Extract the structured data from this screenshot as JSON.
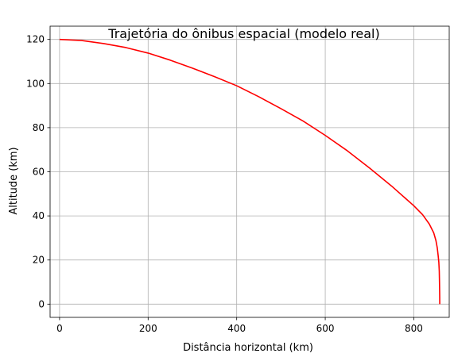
{
  "chart_data": {
    "type": "line",
    "title": "Trajetória do ônibus espacial (modelo real)",
    "xlabel": "Distância horizontal (km)",
    "ylabel": "Altitude (km)",
    "xlim": [
      -21.4,
      880
    ],
    "ylim": [
      -6,
      126
    ],
    "xticks": [
      0,
      200,
      400,
      600,
      800
    ],
    "yticks": [
      0,
      20,
      40,
      60,
      80,
      100,
      120
    ],
    "grid": true,
    "colors": {
      "line": "#ff0000",
      "grid": "#b0b0b0",
      "axes": "#000000"
    },
    "series": [
      {
        "x": [
          0,
          50,
          100,
          150,
          200,
          250,
          300,
          350,
          400,
          450,
          500,
          550,
          600,
          650,
          700,
          750,
          800,
          820,
          835,
          845,
          850,
          853,
          855,
          856.5,
          857.5,
          858,
          858.3,
          858.5,
          858.6
        ],
        "y": [
          120,
          119.5,
          118.1,
          116.3,
          113.8,
          110.6,
          107,
          103.1,
          99,
          94,
          88.6,
          83,
          76.5,
          69.5,
          61.7,
          53.5,
          44.6,
          40.5,
          36.3,
          32.3,
          28.8,
          25.5,
          22,
          19,
          15,
          10,
          6,
          3,
          0
        ]
      }
    ]
  }
}
